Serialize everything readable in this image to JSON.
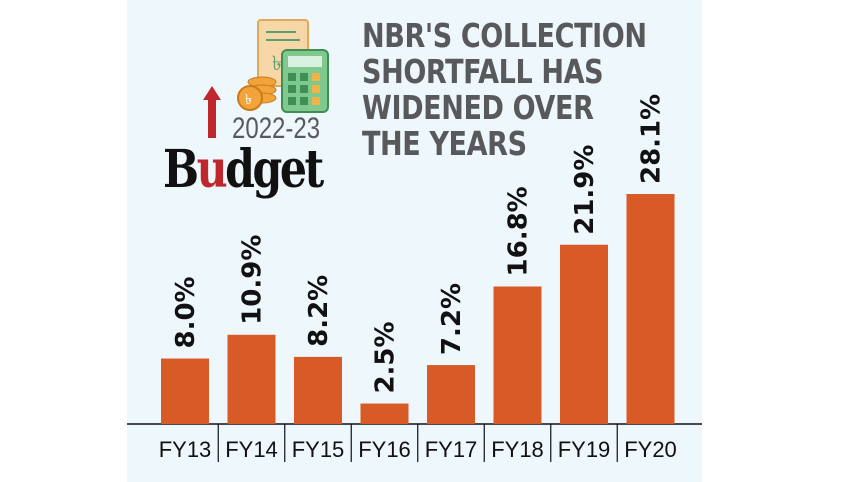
{
  "header": {
    "title_lines": [
      "NBR'S COLLECTION",
      "SHORTFALL HAS",
      "WIDENED OVER",
      "THE YEARS"
    ]
  },
  "logo": {
    "year": "2022-23",
    "word_prefix": "B",
    "word_accent": "u",
    "word_suffix": "dget",
    "icons": [
      "document-icon",
      "coins-icon",
      "calculator-icon",
      "up-arrow-icon"
    ]
  },
  "colors": {
    "bar": "#d85a26",
    "panel": "#eef7fb",
    "title": "#58595b",
    "accent": "#c0272d"
  },
  "chart_data": {
    "type": "bar",
    "categories": [
      "FY13",
      "FY14",
      "FY15",
      "FY16",
      "FY17",
      "FY18",
      "FY19",
      "FY20"
    ],
    "values": [
      8.0,
      10.9,
      8.2,
      2.5,
      7.2,
      16.8,
      21.9,
      28.1
    ],
    "data_labels": [
      "8.0%",
      "10.9%",
      "8.2%",
      "2.5%",
      "7.2%",
      "16.8%",
      "21.9%",
      "28.1%"
    ],
    "title": "NBR'S COLLECTION SHORTFALL HAS WIDENED OVER THE YEARS",
    "xlabel": "",
    "ylabel": "",
    "ylim": [
      0,
      28.1
    ],
    "grid": false,
    "legend": "none"
  }
}
